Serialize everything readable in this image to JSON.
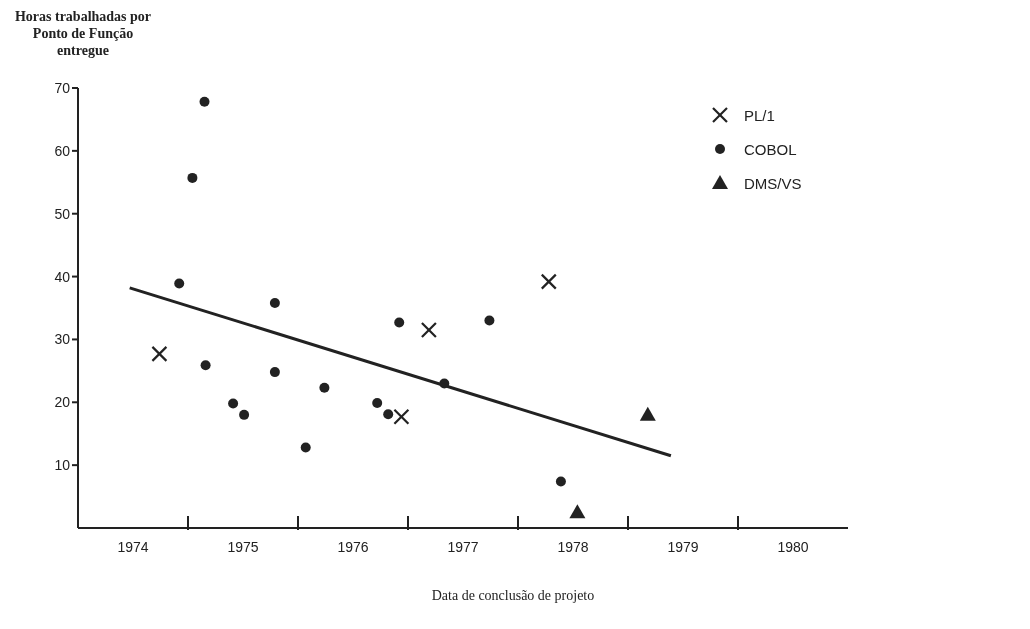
{
  "chart_data": {
    "type": "scatter",
    "ylabel": "Horas trabalhadas por Ponto de Função entregue",
    "xlabel": "Data de conclusão de projeto",
    "xlim": [
      1974,
      1981
    ],
    "xticks": [
      {
        "value": 1974.5,
        "label": "1974"
      },
      {
        "value": 1975,
        "label": null
      },
      {
        "value": 1975.5,
        "label": "1975"
      },
      {
        "value": 1976,
        "label": null
      },
      {
        "value": 1976.5,
        "label": "1976"
      },
      {
        "value": 1977,
        "label": null
      },
      {
        "value": 1977.5,
        "label": "1977"
      },
      {
        "value": 1978,
        "label": null
      },
      {
        "value": 1978.5,
        "label": "1978"
      },
      {
        "value": 1979,
        "label": null
      },
      {
        "value": 1979.5,
        "label": "1979"
      },
      {
        "value": 1980,
        "label": null
      },
      {
        "value": 1980.5,
        "label": "1980"
      }
    ],
    "ylim": [
      0,
      70
    ],
    "yticks": [
      10,
      20,
      30,
      40,
      50,
      60,
      70
    ],
    "legend": "top right",
    "series": [
      {
        "name": "PL/1",
        "color": "#222222",
        "marker": "cross",
        "x": [
          1974.74,
          1977.19,
          1976.94,
          1978.28
        ],
        "values": [
          27.7,
          31.5,
          17.7,
          39.2
        ]
      },
      {
        "name": "COBOL",
        "color": "#222222",
        "marker": "circle",
        "x": [
          1974.92,
          1975.04,
          1975.15,
          1975.16,
          1975.41,
          1975.51,
          1975.79,
          1975.79,
          1976.07,
          1976.24,
          1976.72,
          1976.82,
          1976.92,
          1977.33,
          1977.74,
          1978.39
        ],
        "values": [
          38.9,
          55.7,
          67.8,
          25.9,
          19.8,
          18.0,
          35.8,
          24.8,
          12.8,
          22.3,
          19.9,
          18.1,
          32.7,
          23.0,
          33.0,
          7.4
        ]
      },
      {
        "name": "DMS/VS",
        "color": "#222222",
        "marker": "triangle",
        "x": [
          1978.54,
          1979.18
        ],
        "values": [
          2.5,
          18.0
        ]
      },
      {
        "type": "line",
        "color": "#222222",
        "marker": "none",
        "x": [
          1974.47,
          1979.39
        ],
        "values": [
          38.2,
          11.5
        ]
      }
    ]
  }
}
